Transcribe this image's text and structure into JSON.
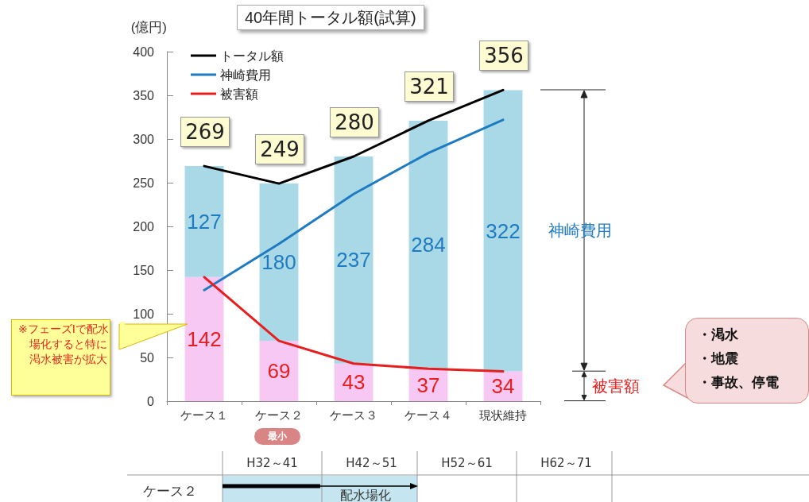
{
  "chart_data": {
    "type": "bar",
    "title": "40年間トータル額(試算)",
    "ylabel": "(億円)",
    "categories": [
      "ケース１",
      "ケース２",
      "ケース３",
      "ケース４",
      "現状維持"
    ],
    "stacked": true,
    "series": [
      {
        "color": "#f8c8f4",
        "values": [
          142,
          69,
          43,
          37,
          34
        ],
        "value_labels": [
          "142",
          "69",
          "43",
          "37",
          "34"
        ]
      },
      {
        "color": "#a9d9e6",
        "values": [
          127,
          180,
          237,
          284,
          322
        ],
        "value_labels": [
          "127",
          "180",
          "237",
          "284",
          "322"
        ]
      },
      {
        "type": "line",
        "name": "トータル額",
        "color": "#000000",
        "values": [
          269,
          249,
          280,
          321,
          356
        ]
      },
      {
        "type": "line",
        "name": "神崎費用",
        "color": "#1f7bc1",
        "values": [
          127,
          180,
          237,
          284,
          322
        ]
      },
      {
        "type": "line",
        "name": "被害額",
        "color": "#e61e1e",
        "values": [
          142,
          69,
          43,
          37,
          34
        ]
      }
    ],
    "totals": [
      "269",
      "249",
      "280",
      "321",
      "356"
    ],
    "ylim": [
      0,
      400
    ],
    "yticks": [
      0,
      50,
      100,
      150,
      200,
      250,
      300,
      350,
      400
    ],
    "grid": false,
    "legend": "top left",
    "marker": "none",
    "line_style": "solid",
    "annotations": [
      "※フェーズⅠで配水場化すると特に渇水被害が拡大",
      "最小",
      "神崎費用",
      "被害額",
      "・渇水",
      "・地震",
      "・事故、停電",
      "H32～41",
      "H42～51",
      "H52～61",
      "H62～71",
      "ケース２",
      "配水場化"
    ]
  }
}
